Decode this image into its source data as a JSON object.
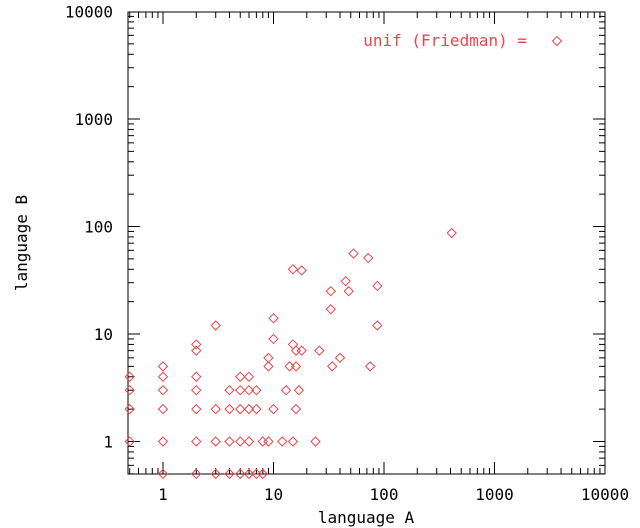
{
  "chart_data": {
    "type": "scatter",
    "xlabel": "language A",
    "ylabel": "language B",
    "x_scale": "log",
    "y_scale": "log",
    "xlim": [
      0.5,
      10000
    ],
    "ylim": [
      0.5,
      10000
    ],
    "x_ticks": [
      {
        "value": 1,
        "label": "1"
      },
      {
        "value": 10,
        "label": "10"
      },
      {
        "value": 100,
        "label": "100"
      },
      {
        "value": 1000,
        "label": "1000"
      },
      {
        "value": 10000,
        "label": "10000"
      }
    ],
    "y_ticks": [
      {
        "value": 1,
        "label": "1"
      },
      {
        "value": 10,
        "label": "10"
      },
      {
        "value": 100,
        "label": "100"
      },
      {
        "value": 1000,
        "label": "1000"
      },
      {
        "value": 10000,
        "label": "10000"
      }
    ],
    "grid": false,
    "legend_position": "top-right",
    "marker": "diamond",
    "color": "#e8474c",
    "series": [
      {
        "name": "unif (Friedman) =",
        "points": [
          [
            0.5,
            4
          ],
          [
            0.5,
            3
          ],
          [
            0.5,
            2
          ],
          [
            0.5,
            1
          ],
          [
            1,
            5
          ],
          [
            1,
            4
          ],
          [
            1,
            3
          ],
          [
            1,
            2
          ],
          [
            1,
            1
          ],
          [
            1,
            0.5
          ],
          [
            2,
            8
          ],
          [
            2,
            7
          ],
          [
            2,
            4
          ],
          [
            2,
            3
          ],
          [
            2,
            2
          ],
          [
            2,
            1
          ],
          [
            2,
            0.5
          ],
          [
            3,
            12
          ],
          [
            3,
            2
          ],
          [
            3,
            1
          ],
          [
            3,
            0.5
          ],
          [
            4,
            3
          ],
          [
            4,
            2
          ],
          [
            4,
            1
          ],
          [
            4,
            0.5
          ],
          [
            5,
            4
          ],
          [
            5,
            3
          ],
          [
            5,
            2
          ],
          [
            5,
            1
          ],
          [
            5,
            0.5
          ],
          [
            6,
            4
          ],
          [
            6,
            3
          ],
          [
            6,
            2
          ],
          [
            6,
            1
          ],
          [
            6,
            0.5
          ],
          [
            7,
            3
          ],
          [
            7,
            2
          ],
          [
            7,
            0.5
          ],
          [
            8,
            1
          ],
          [
            8,
            0.5
          ],
          [
            9,
            6
          ],
          [
            9,
            5
          ],
          [
            9,
            1
          ],
          [
            10,
            14
          ],
          [
            10,
            9
          ],
          [
            10,
            2
          ],
          [
            12,
            1
          ],
          [
            13,
            3
          ],
          [
            14,
            5
          ],
          [
            15,
            40
          ],
          [
            15,
            8
          ],
          [
            15,
            1
          ],
          [
            16,
            7
          ],
          [
            16,
            5
          ],
          [
            16,
            2
          ],
          [
            17,
            3
          ],
          [
            18,
            39
          ],
          [
            18,
            7
          ],
          [
            24,
            1
          ],
          [
            26,
            7
          ],
          [
            33,
            25
          ],
          [
            33,
            17
          ],
          [
            34,
            5
          ],
          [
            40,
            6
          ],
          [
            45,
            31
          ],
          [
            48,
            25
          ],
          [
            53,
            56
          ],
          [
            72,
            51
          ],
          [
            75,
            5
          ],
          [
            87,
            28
          ],
          [
            87,
            12
          ],
          [
            410,
            87
          ]
        ]
      }
    ]
  }
}
